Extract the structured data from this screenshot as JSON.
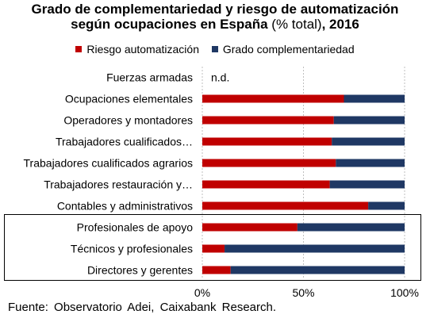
{
  "title": {
    "line1": "Grado de complementariedad y riesgo de automatización",
    "line2_bold": "según ocupaciones en España",
    "line2_normal": " (% total)",
    "line2_end": ", 2016"
  },
  "source": "Fuente: Observatorio Adei, Caixabank Research.",
  "colors": {
    "riesgo": "#c00000",
    "complementariedad": "#1f3864",
    "highlight_box": "#000000",
    "gridline": "#bfbfbf"
  },
  "chart_data": {
    "type": "bar",
    "orientation": "horizontal",
    "stacked": true,
    "categories": [
      "Fuerzas armadas",
      "Ocupaciones elementales",
      "Operadores y montadores",
      "Trabajadores cualificados…",
      "Trabajadores cualificados agrarios",
      "Trabajadores restauración y…",
      "Contables y administrativos",
      "Profesionales de apoyo",
      "Técnicos y profesionales",
      "Directores y gerentes"
    ],
    "series": [
      {
        "name": "Riesgo automatización",
        "color": "#c00000",
        "values": [
          null,
          70,
          65,
          64,
          66,
          63,
          82,
          47,
          11,
          14
        ]
      },
      {
        "name": "Grado complementariedad",
        "color": "#1f3864",
        "values": [
          null,
          30,
          35,
          36,
          34,
          37,
          18,
          53,
          89,
          86
        ]
      }
    ],
    "annotations": [
      {
        "category": "Fuerzas armadas",
        "text": "n.d."
      }
    ],
    "highlighted_categories": [
      "Profesionales de apoyo",
      "Técnicos y profesionales",
      "Directores y gerentes"
    ],
    "xlim": [
      0,
      100
    ],
    "xticks": [
      0,
      50,
      100
    ],
    "xtick_labels": [
      "0%",
      "50%",
      "100%"
    ],
    "grid": "vertical dashed",
    "legend": "top"
  }
}
